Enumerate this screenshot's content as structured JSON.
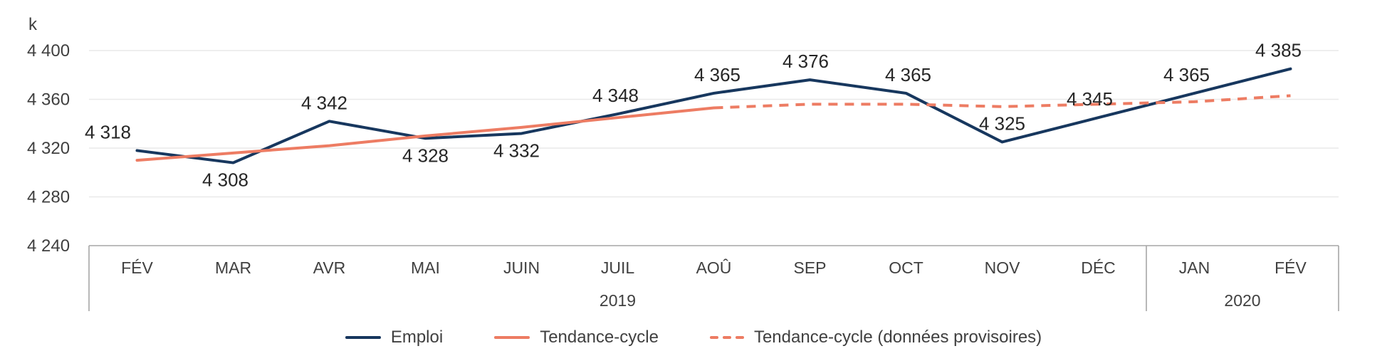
{
  "chart_data": {
    "type": "line",
    "unit": "k",
    "categories": [
      "FÉV",
      "MAR",
      "AVR",
      "MAI",
      "JUIN",
      "JUIL",
      "AOÛ",
      "SEP",
      "OCT",
      "NOV",
      "DÉC",
      "JAN",
      "FÉV"
    ],
    "year_groups": [
      {
        "label": "2019",
        "from": 0,
        "to": 10
      },
      {
        "label": "2020",
        "from": 11,
        "to": 12
      }
    ],
    "yticks": [
      {
        "label": "4 400",
        "value": 4400
      },
      {
        "label": "4 360",
        "value": 4360
      },
      {
        "label": "4 320",
        "value": 4320
      },
      {
        "label": "4 280",
        "value": 4280
      },
      {
        "label": "4 240",
        "value": 4240
      }
    ],
    "ylim": [
      4240,
      4400
    ],
    "grid": true,
    "legend_position": "bottom",
    "series": [
      {
        "name": "Emploi",
        "style": "solid",
        "color": "#17375e",
        "x_from": 0,
        "values": [
          4318,
          4308,
          4342,
          4328,
          4332,
          4348,
          4365,
          4376,
          4365,
          4325,
          4345,
          4365,
          4385
        ],
        "data_labels": [
          "4 318",
          "4 308",
          "4 342",
          "4 328",
          "4 332",
          "4 348",
          "4 365",
          "4 376",
          "4 365",
          "4 325",
          "4 345",
          "4 365",
          "4 385"
        ],
        "label_positions": [
          "above",
          "below",
          "above",
          "below",
          "below",
          "above",
          "above",
          "above",
          "above",
          "above",
          "above",
          "above",
          "above"
        ]
      },
      {
        "name": "Tendance-cycle",
        "style": "solid",
        "color": "#ed7c63",
        "x_from": 0,
        "values": [
          4310,
          4316,
          4322,
          4330,
          4337,
          4345,
          4353
        ]
      },
      {
        "name": "Tendance-cycle (données provisoires)",
        "style": "dashed",
        "color": "#ed7c63",
        "x_from": 6,
        "values": [
          4353,
          4356,
          4356,
          4354,
          4356,
          4358,
          4363
        ]
      }
    ]
  },
  "legend": {
    "items": [
      {
        "label": "Emploi",
        "style": "solid",
        "color": "#17375e"
      },
      {
        "label": "Tendance-cycle",
        "style": "solid",
        "color": "#ed7c63"
      },
      {
        "label": "Tendance-cycle (données provisoires)",
        "style": "dashed",
        "color": "#ed7c63"
      }
    ]
  },
  "colors": {
    "grid": "#e9e9e9",
    "axis_border": "#a6a6a6",
    "text": "#404040"
  }
}
